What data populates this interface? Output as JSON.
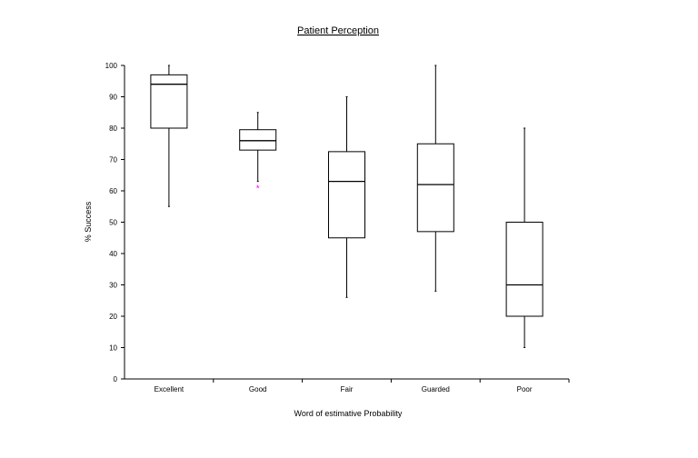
{
  "chart_data": {
    "type": "box",
    "title": "Patient Perception",
    "xlabel": "Word of estimative Probability",
    "ylabel": "% Success",
    "ylim": [
      0,
      100
    ],
    "yticks": [
      0,
      10,
      20,
      30,
      40,
      50,
      60,
      70,
      80,
      90,
      100
    ],
    "grid": false,
    "categories": [
      "Excellent",
      "Good",
      "Fair",
      "Guarded",
      "Poor"
    ],
    "boxes": [
      {
        "category": "Excellent",
        "min": 55,
        "q1": 80,
        "median": 94,
        "q3": 97,
        "max": 100,
        "outliers": []
      },
      {
        "category": "Good",
        "min": 63,
        "q1": 73,
        "median": 76,
        "q3": 79.5,
        "max": 85,
        "outliers": [
          61
        ]
      },
      {
        "category": "Fair",
        "min": 26,
        "q1": 45,
        "median": 63,
        "q3": 72.5,
        "max": 90,
        "outliers": []
      },
      {
        "category": "Guarded",
        "min": 28,
        "q1": 47,
        "median": 62,
        "q3": 75,
        "max": 100,
        "outliers": []
      },
      {
        "category": "Poor",
        "min": 10,
        "q1": 20,
        "median": 30,
        "q3": 50,
        "max": 80,
        "outliers": []
      }
    ],
    "colors": {
      "box_fill": "#ffffff",
      "line": "#000000",
      "outlier": "#ff00ff"
    }
  }
}
